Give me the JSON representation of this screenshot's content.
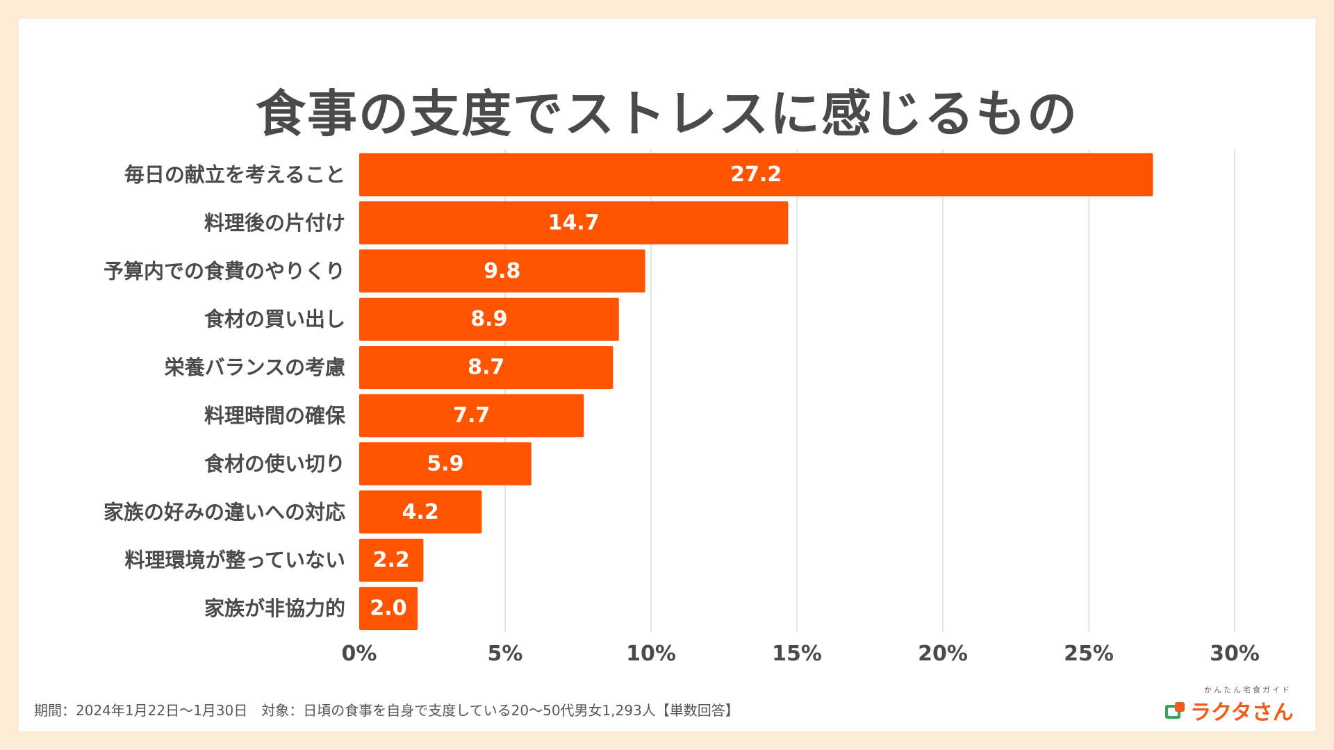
{
  "title": "食事の支度でストレスに感じるもの",
  "footnote": "期間：2024年1月22日〜1月30日　対象：日頃の食事を自身で支度している20〜50代男女1,293人【単数回答】",
  "logo": {
    "tagline": "かんたん宅食ガイド",
    "name": "ラクタさん"
  },
  "colors": {
    "bar": "#ff5500",
    "grid": "#dcdcdc",
    "label": "#4a4a4a",
    "value": "#ffffff"
  },
  "chart_data": {
    "type": "bar",
    "orientation": "horizontal",
    "categories": [
      "毎日の献立を考えること",
      "料理後の片付け",
      "予算内での食費のやりくり",
      "食材の買い出し",
      "栄養バランスの考慮",
      "料理時間の確保",
      "食材の使い切り",
      "家族の好みの違いへの対応",
      "料理環境が整っていない",
      "家族が非協力的"
    ],
    "values": [
      27.2,
      14.7,
      9.8,
      8.9,
      8.7,
      7.7,
      5.9,
      4.2,
      2.2,
      2.0
    ],
    "value_labels": [
      "27.2",
      "14.7",
      "9.8",
      "8.9",
      "8.7",
      "7.7",
      "5.9",
      "4.2",
      "2.2",
      "2.0"
    ],
    "xlim": [
      0,
      30
    ],
    "xticks": [
      0,
      5,
      10,
      15,
      20,
      25,
      30
    ],
    "xtick_labels": [
      "0%",
      "5%",
      "10%",
      "15%",
      "20%",
      "25%",
      "30%"
    ],
    "grid": true
  }
}
